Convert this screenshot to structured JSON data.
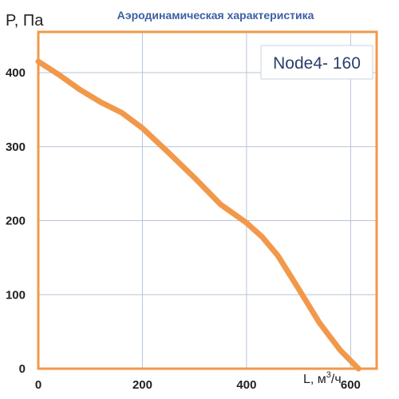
{
  "chart_data": {
    "type": "line",
    "title": "Аэродинамическая характеристика",
    "ylabel": "P, Па",
    "xlabel_main": "L, м",
    "xlabel_sup": "3",
    "xlabel_tail": "/ч",
    "annotation": "Node4- 160",
    "xlim": [
      0,
      650
    ],
    "ylim": [
      0,
      455
    ],
    "x_ticks": [
      0,
      200,
      400,
      600
    ],
    "y_ticks": [
      0,
      100,
      200,
      300,
      400
    ],
    "grid": true,
    "colors": {
      "line": "#f2984a",
      "grid": "#b7c4d6",
      "title": "#3d5fa3"
    },
    "series": [
      {
        "x": [
          0,
          40,
          80,
          120,
          160,
          200,
          250,
          300,
          350,
          400,
          430,
          460,
          500,
          540,
          580,
          615
        ],
        "y": [
          415,
          397,
          377,
          360,
          346,
          325,
          292,
          258,
          222,
          197,
          178,
          153,
          108,
          62,
          25,
          0
        ]
      }
    ]
  }
}
